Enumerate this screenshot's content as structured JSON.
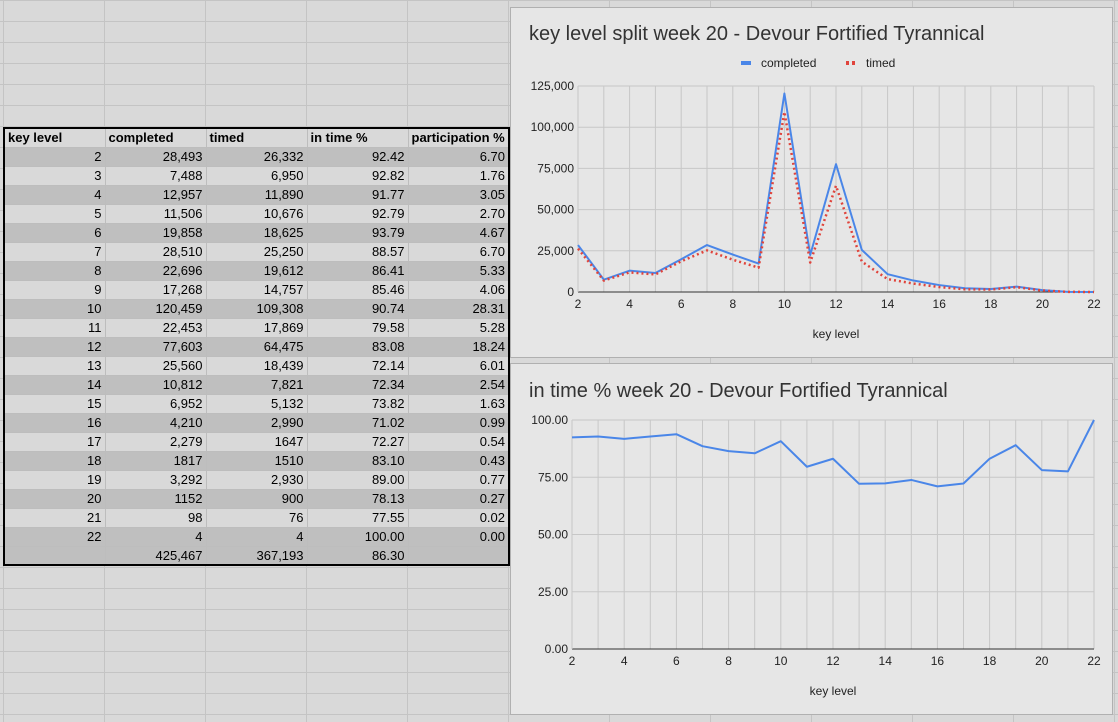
{
  "table": {
    "headers": [
      "key level",
      "completed",
      "timed",
      "in time %",
      "participation %"
    ],
    "rows": [
      [
        "2",
        "28,493",
        "26,332",
        "92.42",
        "6.70"
      ],
      [
        "3",
        "7,488",
        "6,950",
        "92.82",
        "1.76"
      ],
      [
        "4",
        "12,957",
        "11,890",
        "91.77",
        "3.05"
      ],
      [
        "5",
        "11,506",
        "10,676",
        "92.79",
        "2.70"
      ],
      [
        "6",
        "19,858",
        "18,625",
        "93.79",
        "4.67"
      ],
      [
        "7",
        "28,510",
        "25,250",
        "88.57",
        "6.70"
      ],
      [
        "8",
        "22,696",
        "19,612",
        "86.41",
        "5.33"
      ],
      [
        "9",
        "17,268",
        "14,757",
        "85.46",
        "4.06"
      ],
      [
        "10",
        "120,459",
        "109,308",
        "90.74",
        "28.31"
      ],
      [
        "11",
        "22,453",
        "17,869",
        "79.58",
        "5.28"
      ],
      [
        "12",
        "77,603",
        "64,475",
        "83.08",
        "18.24"
      ],
      [
        "13",
        "25,560",
        "18,439",
        "72.14",
        "6.01"
      ],
      [
        "14",
        "10,812",
        "7,821",
        "72.34",
        "2.54"
      ],
      [
        "15",
        "6,952",
        "5,132",
        "73.82",
        "1.63"
      ],
      [
        "16",
        "4,210",
        "2,990",
        "71.02",
        "0.99"
      ],
      [
        "17",
        "2,279",
        "1647",
        "72.27",
        "0.54"
      ],
      [
        "18",
        "1817",
        "1510",
        "83.10",
        "0.43"
      ],
      [
        "19",
        "3,292",
        "2,930",
        "89.00",
        "0.77"
      ],
      [
        "20",
        "1152",
        "900",
        "78.13",
        "0.27"
      ],
      [
        "21",
        "98",
        "76",
        "77.55",
        "0.02"
      ],
      [
        "22",
        "4",
        "4",
        "100.00",
        "0.00"
      ]
    ],
    "totals": [
      "",
      "425,467",
      "367,193",
      "86.30",
      ""
    ]
  },
  "chart_data": [
    {
      "type": "line",
      "title": "key level split week 20 - Devour Fortified Tyrannical",
      "xlabel": "key level",
      "ylabel": "",
      "x": [
        2,
        3,
        4,
        5,
        6,
        7,
        8,
        9,
        10,
        11,
        12,
        13,
        14,
        15,
        16,
        17,
        18,
        19,
        20,
        21,
        22
      ],
      "xlim": [
        2,
        22
      ],
      "ylim": [
        0,
        125000
      ],
      "xticks": [
        "2",
        "4",
        "6",
        "8",
        "10",
        "12",
        "14",
        "16",
        "18",
        "20",
        "22"
      ],
      "yticks": [
        "0",
        "25,000",
        "50,000",
        "75,000",
        "100,000",
        "125,000"
      ],
      "legend_position": "top",
      "grid": true,
      "series": [
        {
          "name": "completed",
          "color": "#4a86e8",
          "style": "solid",
          "values": [
            28493,
            7488,
            12957,
            11506,
            19858,
            28510,
            22696,
            17268,
            120459,
            22453,
            77603,
            25560,
            10812,
            6952,
            4210,
            2279,
            1817,
            3292,
            1152,
            98,
            4
          ]
        },
        {
          "name": "timed",
          "color": "#e0443c",
          "style": "dotted",
          "values": [
            26332,
            6950,
            11890,
            10676,
            18625,
            25250,
            19612,
            14757,
            109308,
            17869,
            64475,
            18439,
            7821,
            5132,
            2990,
            1647,
            1510,
            2930,
            900,
            76,
            4
          ]
        }
      ]
    },
    {
      "type": "line",
      "title": "in time % week 20 - Devour Fortified Tyrannical",
      "xlabel": "key level",
      "ylabel": "",
      "x": [
        2,
        3,
        4,
        5,
        6,
        7,
        8,
        9,
        10,
        11,
        12,
        13,
        14,
        15,
        16,
        17,
        18,
        19,
        20,
        21,
        22
      ],
      "xlim": [
        2,
        22
      ],
      "ylim": [
        0,
        100
      ],
      "xticks": [
        "2",
        "4",
        "6",
        "8",
        "10",
        "12",
        "14",
        "16",
        "18",
        "20",
        "22"
      ],
      "yticks": [
        "0.00",
        "25.00",
        "50.00",
        "75.00",
        "100.00"
      ],
      "grid": true,
      "series": [
        {
          "color": "#4a86e8",
          "style": "solid",
          "values": [
            92.42,
            92.82,
            91.77,
            92.79,
            93.79,
            88.57,
            86.41,
            85.46,
            90.74,
            79.58,
            83.08,
            72.14,
            72.34,
            73.82,
            71.02,
            72.27,
            83.1,
            89.0,
            78.13,
            77.55,
            100.0
          ]
        }
      ]
    }
  ]
}
